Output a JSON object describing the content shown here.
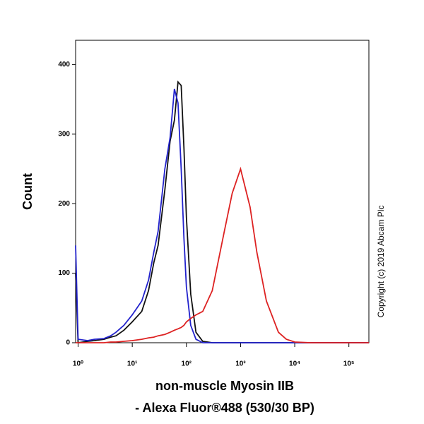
{
  "chart_data": {
    "type": "line",
    "xlabel": [
      "non-muscle Myosin IIB",
      "- Alexa Fluor®488 (530/30 BP)"
    ],
    "ylabel": "Count",
    "annotation": "Copyright (c) 2019 Abcam Plc",
    "xscale": "log",
    "x": [
      0.9,
      1,
      1.5,
      2,
      3,
      4,
      5,
      7,
      10,
      15,
      20,
      25,
      30,
      40,
      50,
      60,
      70,
      80,
      90,
      100,
      120,
      150,
      200,
      300,
      500,
      700,
      1000,
      1500,
      2000,
      3000,
      5000,
      7000,
      10000,
      20000,
      50000,
      100000,
      234000
    ],
    "series": [
      {
        "color": "#111111",
        "values": [
          100,
          0,
          2,
          3,
          5,
          8,
          10,
          18,
          30,
          45,
          75,
          115,
          140,
          220,
          290,
          320,
          375,
          370,
          280,
          180,
          70,
          15,
          2,
          0,
          0,
          0,
          0,
          0,
          0,
          0,
          0,
          0,
          0,
          0,
          0,
          0,
          0
        ]
      },
      {
        "color": "#2222cc",
        "values": [
          140,
          5,
          3,
          5,
          6,
          10,
          15,
          25,
          40,
          60,
          90,
          130,
          160,
          250,
          295,
          365,
          345,
          250,
          150,
          80,
          25,
          5,
          0,
          0,
          0,
          0,
          0,
          0,
          0,
          0,
          0,
          0,
          0,
          0,
          0,
          0,
          0
        ]
      },
      {
        "color": "#dd2222",
        "values": [
          0,
          0,
          0,
          0,
          0,
          1,
          1,
          2,
          3,
          5,
          7,
          8,
          10,
          12,
          15,
          18,
          20,
          22,
          25,
          30,
          35,
          40,
          45,
          75,
          160,
          215,
          250,
          195,
          130,
          60,
          15,
          5,
          1,
          0,
          0,
          0,
          0
        ]
      }
    ],
    "xlim": [
      0.9,
      234000
    ],
    "xticks": [
      {
        "value": 1,
        "label": "10⁰"
      },
      {
        "value": 10,
        "label": "10¹"
      },
      {
        "value": 100,
        "label": "10²"
      },
      {
        "value": 1000,
        "label": "10³"
      },
      {
        "value": 10000,
        "label": "10⁴"
      },
      {
        "value": 100000,
        "label": "10⁵"
      }
    ],
    "ylim": [
      0,
      435
    ],
    "yticks": [
      0,
      100,
      200,
      300,
      400
    ]
  }
}
